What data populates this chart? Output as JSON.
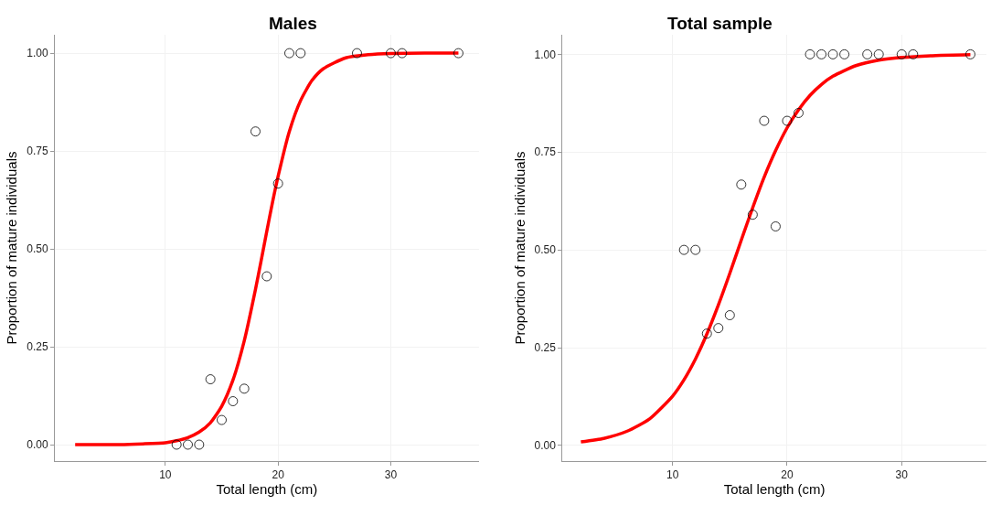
{
  "chart_data": [
    {
      "type": "scatter",
      "title": "Males",
      "xlabel": "Total length (cm)",
      "ylabel": "Proportion of mature individuals",
      "xlim": [
        0.2,
        37.8
      ],
      "xticks": [
        10,
        20,
        30
      ],
      "ylim": [
        -0.042,
        1.047
      ],
      "yticks": [
        {
          "value": 0,
          "label": "0.00"
        },
        {
          "value": 0.25,
          "label": "0.25"
        },
        {
          "value": 0.5,
          "label": "0.50"
        },
        {
          "value": 0.75,
          "label": "0.75"
        },
        {
          "value": 1,
          "label": "1.00"
        }
      ],
      "grid": true,
      "series": [
        {
          "marker": "circle",
          "color": "#000000",
          "x": [
            11,
            12,
            13,
            14,
            15,
            16,
            17,
            18,
            19,
            20,
            21,
            22,
            27,
            30,
            31,
            36
          ],
          "values": [
            0,
            0,
            0,
            0.167,
            0.063,
            0.111,
            0.143,
            0.8,
            0.43,
            0.667,
            1,
            1,
            1,
            1,
            1,
            1
          ]
        },
        {
          "type": "line",
          "marker": "none",
          "color": "#ff0000",
          "x": [
            2,
            4,
            6,
            8,
            10,
            11,
            12,
            13,
            14,
            15,
            16,
            17,
            18,
            18.5,
            19,
            19.5,
            20,
            21,
            22,
            23,
            24,
            26,
            28,
            30,
            33,
            36
          ],
          "values": [
            0,
            0,
            0,
            0.002,
            0.005,
            0.01,
            0.018,
            0.032,
            0.056,
            0.098,
            0.165,
            0.265,
            0.397,
            0.47,
            0.545,
            0.618,
            0.685,
            0.8,
            0.879,
            0.93,
            0.96,
            0.988,
            0.996,
            0.999,
            1,
            1
          ]
        }
      ]
    },
    {
      "type": "scatter",
      "title": "Total sample",
      "xlabel": "Total length (cm)",
      "ylabel": "Proportion of mature individuals",
      "xlim": [
        0.4,
        37.4
      ],
      "xticks": [
        10,
        20,
        30
      ],
      "ylim": [
        -0.04,
        1.05
      ],
      "yticks": [
        {
          "value": 0,
          "label": "0.00"
        },
        {
          "value": 0.25,
          "label": "0.25"
        },
        {
          "value": 0.5,
          "label": "0.50"
        },
        {
          "value": 0.75,
          "label": "0.75"
        },
        {
          "value": 1,
          "label": "1.00"
        }
      ],
      "grid": true,
      "series": [
        {
          "marker": "circle",
          "color": "#000000",
          "x": [
            11,
            12,
            13,
            14,
            15,
            16,
            17,
            18,
            19,
            20,
            21,
            22,
            23,
            24,
            25,
            27,
            28,
            30,
            31,
            36
          ],
          "values": [
            0.5,
            0.5,
            0.286,
            0.3,
            0.333,
            0.667,
            0.59,
            0.83,
            0.56,
            0.83,
            0.85,
            1,
            1,
            1,
            1,
            1,
            1,
            1,
            1,
            1
          ]
        },
        {
          "type": "line",
          "marker": "none",
          "color": "#ff0000",
          "x": [
            2,
            4,
            6,
            8,
            10,
            11,
            12,
            13,
            14,
            15,
            16,
            17,
            18,
            19,
            20,
            21,
            22,
            23,
            24,
            26,
            28,
            30,
            33,
            36
          ],
          "values": [
            0.009,
            0.018,
            0.036,
            0.068,
            0.126,
            0.168,
            0.221,
            0.285,
            0.359,
            0.44,
            0.525,
            0.608,
            0.686,
            0.754,
            0.812,
            0.858,
            0.895,
            0.923,
            0.944,
            0.971,
            0.985,
            0.992,
            0.997,
            0.999
          ]
        }
      ]
    }
  ]
}
